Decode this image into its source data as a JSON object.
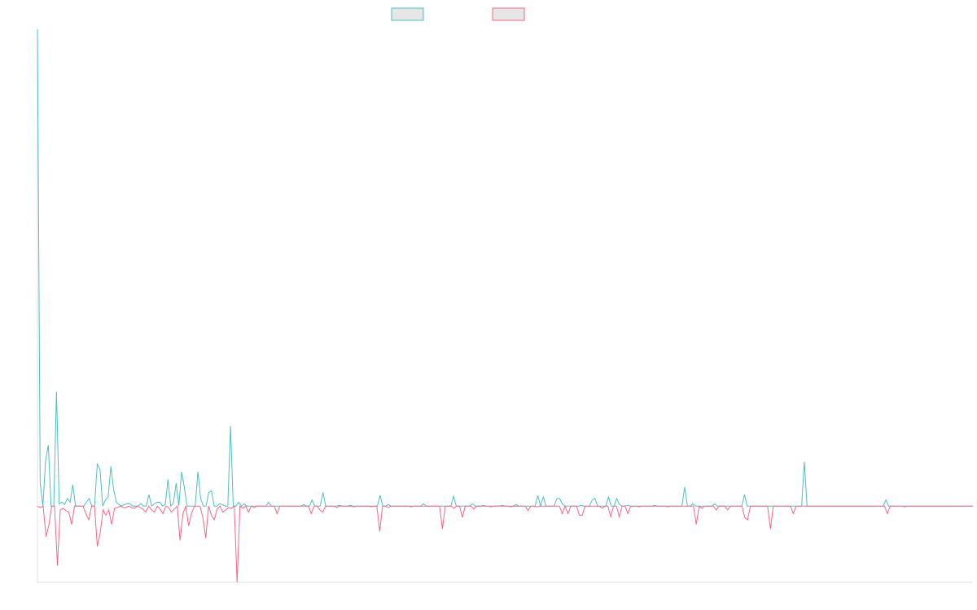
{
  "chart_data": {
    "type": "line",
    "title": "",
    "xlabel": "",
    "ylabel": "",
    "grid": false,
    "legend_placement": "top-center",
    "ylim": [
      -100,
      625
    ],
    "series": [
      {
        "color": "#4bc0c0",
        "fill": "#e6e6e6",
        "values": [
          625,
          30,
          0,
          60,
          80,
          0,
          0,
          150,
          3,
          5,
          2,
          10,
          5,
          28,
          0,
          0,
          0,
          0,
          5,
          10,
          0,
          0,
          55,
          48,
          0,
          8,
          12,
          52,
          22,
          5,
          2,
          0,
          2,
          3,
          3,
          0,
          0,
          0,
          3,
          0,
          0,
          15,
          0,
          3,
          5,
          5,
          0,
          2,
          35,
          0,
          4,
          30,
          0,
          45,
          25,
          0,
          0,
          0,
          0,
          45,
          10,
          0,
          0,
          18,
          20,
          0,
          0,
          3,
          2,
          0,
          0,
          105,
          0,
          0,
          5,
          0,
          3,
          0,
          0,
          0,
          0,
          0,
          0,
          0,
          0,
          5,
          0,
          0,
          0,
          0,
          0,
          0,
          0,
          0,
          0,
          0,
          0,
          0,
          2,
          0,
          0,
          8,
          0,
          0,
          0,
          18,
          0,
          0,
          0,
          0,
          0,
          1,
          0,
          0,
          0,
          1,
          0,
          0,
          0,
          0,
          0,
          0,
          0,
          0,
          0,
          0,
          14,
          0,
          0,
          2,
          0,
          0,
          0,
          0,
          0,
          0,
          0,
          0,
          0,
          0,
          0,
          0,
          3,
          0,
          0,
          0,
          0,
          0,
          0,
          0,
          0,
          0,
          0,
          13,
          0,
          0,
          0,
          0,
          0,
          0,
          3,
          0,
          0,
          0,
          1,
          0,
          0,
          0,
          0,
          0,
          0,
          1,
          0,
          0,
          0,
          0,
          2,
          0,
          0,
          0,
          0,
          0,
          0,
          0,
          14,
          0,
          12,
          0,
          0,
          0,
          0,
          10,
          10,
          3,
          0,
          0,
          0,
          0,
          0,
          0,
          1,
          0,
          0,
          0,
          8,
          10,
          0,
          0,
          0,
          0,
          12,
          0,
          0,
          10,
          2,
          0,
          0,
          1,
          0,
          0,
          0,
          0,
          0,
          0,
          0,
          0,
          0,
          1,
          0,
          0,
          0,
          0,
          0,
          0,
          0,
          0,
          0,
          0,
          25,
          0,
          0,
          3,
          0,
          0,
          0,
          0,
          0,
          0,
          0,
          3,
          0,
          0,
          0,
          0,
          0,
          0,
          0,
          0,
          0,
          0,
          15,
          0,
          0,
          0,
          0,
          0,
          0,
          0,
          0,
          0,
          0,
          0,
          0,
          0,
          0,
          0,
          0,
          0,
          0,
          0,
          0,
          0,
          58,
          0,
          0,
          0,
          0,
          0,
          0,
          0,
          0,
          0,
          0,
          0,
          0,
          0,
          0,
          0,
          0,
          0,
          0,
          0,
          0,
          0,
          0,
          0,
          0,
          0,
          0,
          0,
          0,
          0,
          8,
          0,
          0,
          0,
          0,
          0,
          0,
          0,
          0,
          0,
          0,
          0,
          0,
          0,
          0,
          0,
          0,
          0,
          0,
          0,
          0,
          0,
          0,
          0,
          0,
          0,
          0,
          0,
          0,
          0,
          0,
          0,
          0
        ]
      },
      {
        "color": "#ff6384",
        "fill": "#e6e6e6",
        "values": [
          0,
          -2,
          0,
          -40,
          -25,
          0,
          0,
          -78,
          -5,
          -3,
          -6,
          -8,
          -24,
          0,
          0,
          0,
          0,
          -10,
          -18,
          0,
          0,
          -53,
          -35,
          -5,
          -12,
          -5,
          -24,
          -3,
          -2,
          0,
          -2,
          -2,
          0,
          -2,
          -3,
          0,
          -2,
          -4,
          -8,
          0,
          -5,
          -8,
          0,
          -4,
          -10,
          0,
          -2,
          -8,
          -4,
          0,
          -45,
          -10,
          0,
          -26,
          -10,
          0,
          0,
          0,
          -15,
          -42,
          0,
          -12,
          -18,
          -4,
          0,
          -8,
          -5,
          -2,
          -3,
          0,
          -100,
          0,
          -3,
          0,
          -8,
          0,
          -2,
          0,
          0,
          0,
          0,
          0,
          0,
          0,
          -10,
          0,
          0,
          0,
          0,
          0,
          0,
          0,
          0,
          0,
          0,
          0,
          -10,
          0,
          0,
          -5,
          -8,
          0,
          0,
          0,
          0,
          -2,
          0,
          0,
          0,
          0,
          0,
          -1,
          0,
          0,
          0,
          0,
          0,
          -1,
          0,
          0,
          -33,
          0,
          0,
          -2,
          0,
          0,
          0,
          0,
          0,
          0,
          0,
          -1,
          0,
          0,
          0,
          0,
          0,
          0,
          0,
          0,
          0,
          0,
          -30,
          0,
          0,
          0,
          -3,
          0,
          0,
          -15,
          0,
          0,
          0,
          -4,
          0,
          0,
          0,
          0,
          0,
          -1,
          0,
          0,
          0,
          0,
          0,
          0,
          -1,
          0,
          0,
          0,
          0,
          0,
          -6,
          0,
          0,
          -1,
          0,
          0,
          0,
          0,
          0,
          0,
          0,
          0,
          -10,
          0,
          -10,
          0,
          0,
          0,
          -12,
          -12,
          0,
          0,
          0,
          0,
          0,
          0,
          -3,
          0,
          0,
          -14,
          0,
          0,
          -14,
          0,
          0,
          -10,
          0,
          0,
          0,
          -1,
          0,
          0,
          0,
          0,
          0,
          0,
          0,
          0,
          0,
          -1,
          0,
          0,
          0,
          0,
          0,
          0,
          0,
          0,
          0,
          -24,
          0,
          -3,
          0,
          0,
          0,
          0,
          -5,
          0,
          0,
          0,
          -5,
          0,
          0,
          0,
          0,
          0,
          -15,
          -18,
          0,
          0,
          0,
          0,
          0,
          0,
          0,
          -30,
          0,
          0,
          0,
          0,
          0,
          0,
          0,
          -10,
          0,
          0,
          0,
          0,
          0,
          0,
          0,
          0,
          0,
          0,
          0,
          0,
          0,
          0,
          0,
          0,
          0,
          0,
          0,
          0,
          0,
          0,
          0,
          0,
          0,
          0,
          0,
          0,
          0,
          0,
          0,
          0,
          -10,
          0,
          0,
          0,
          0,
          0,
          -1,
          0,
          0,
          0,
          0,
          0,
          0,
          0,
          0,
          0,
          0,
          0,
          0,
          0,
          0,
          0,
          0,
          0,
          0,
          0,
          0,
          0,
          0,
          0,
          0
        ]
      }
    ]
  }
}
